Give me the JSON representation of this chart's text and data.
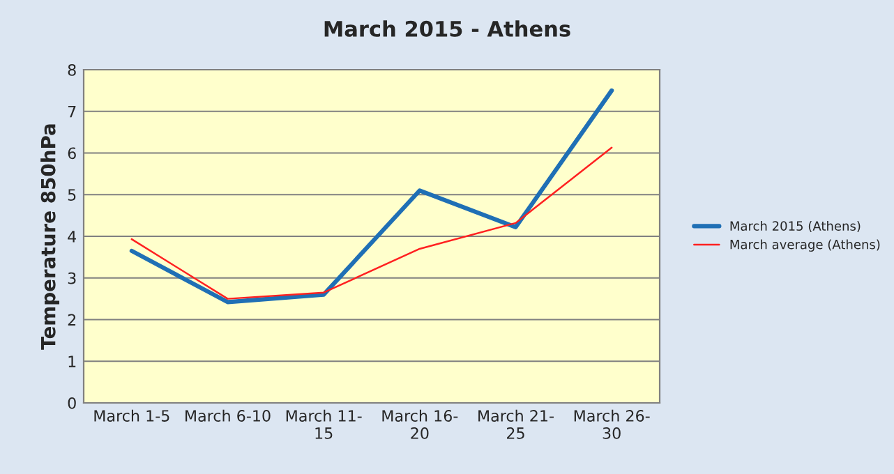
{
  "chart_data": {
    "type": "line",
    "title": "March 2015 - Athens",
    "ylabel": "Temperature 850hPa",
    "categories": [
      "March 1-5",
      "March 6-10",
      "March 11-\n15",
      "March 16-\n20",
      "March 21-\n25",
      "March 26-\n30"
    ],
    "series": [
      {
        "name": "March 2015 (Athens)",
        "color": "#1f6fb5",
        "values": [
          3.65,
          2.42,
          2.6,
          5.1,
          4.22,
          7.5
        ]
      },
      {
        "name": "March average (Athens)",
        "color": "#ff2020",
        "values": [
          3.93,
          2.5,
          2.65,
          3.7,
          4.32,
          6.13
        ]
      }
    ],
    "ylim": [
      0,
      8
    ],
    "yticks": [
      0,
      1,
      2,
      3,
      4,
      5,
      6,
      7,
      8
    ],
    "grid": "y",
    "legend": "right",
    "marker": "none",
    "line_style": "solid"
  }
}
